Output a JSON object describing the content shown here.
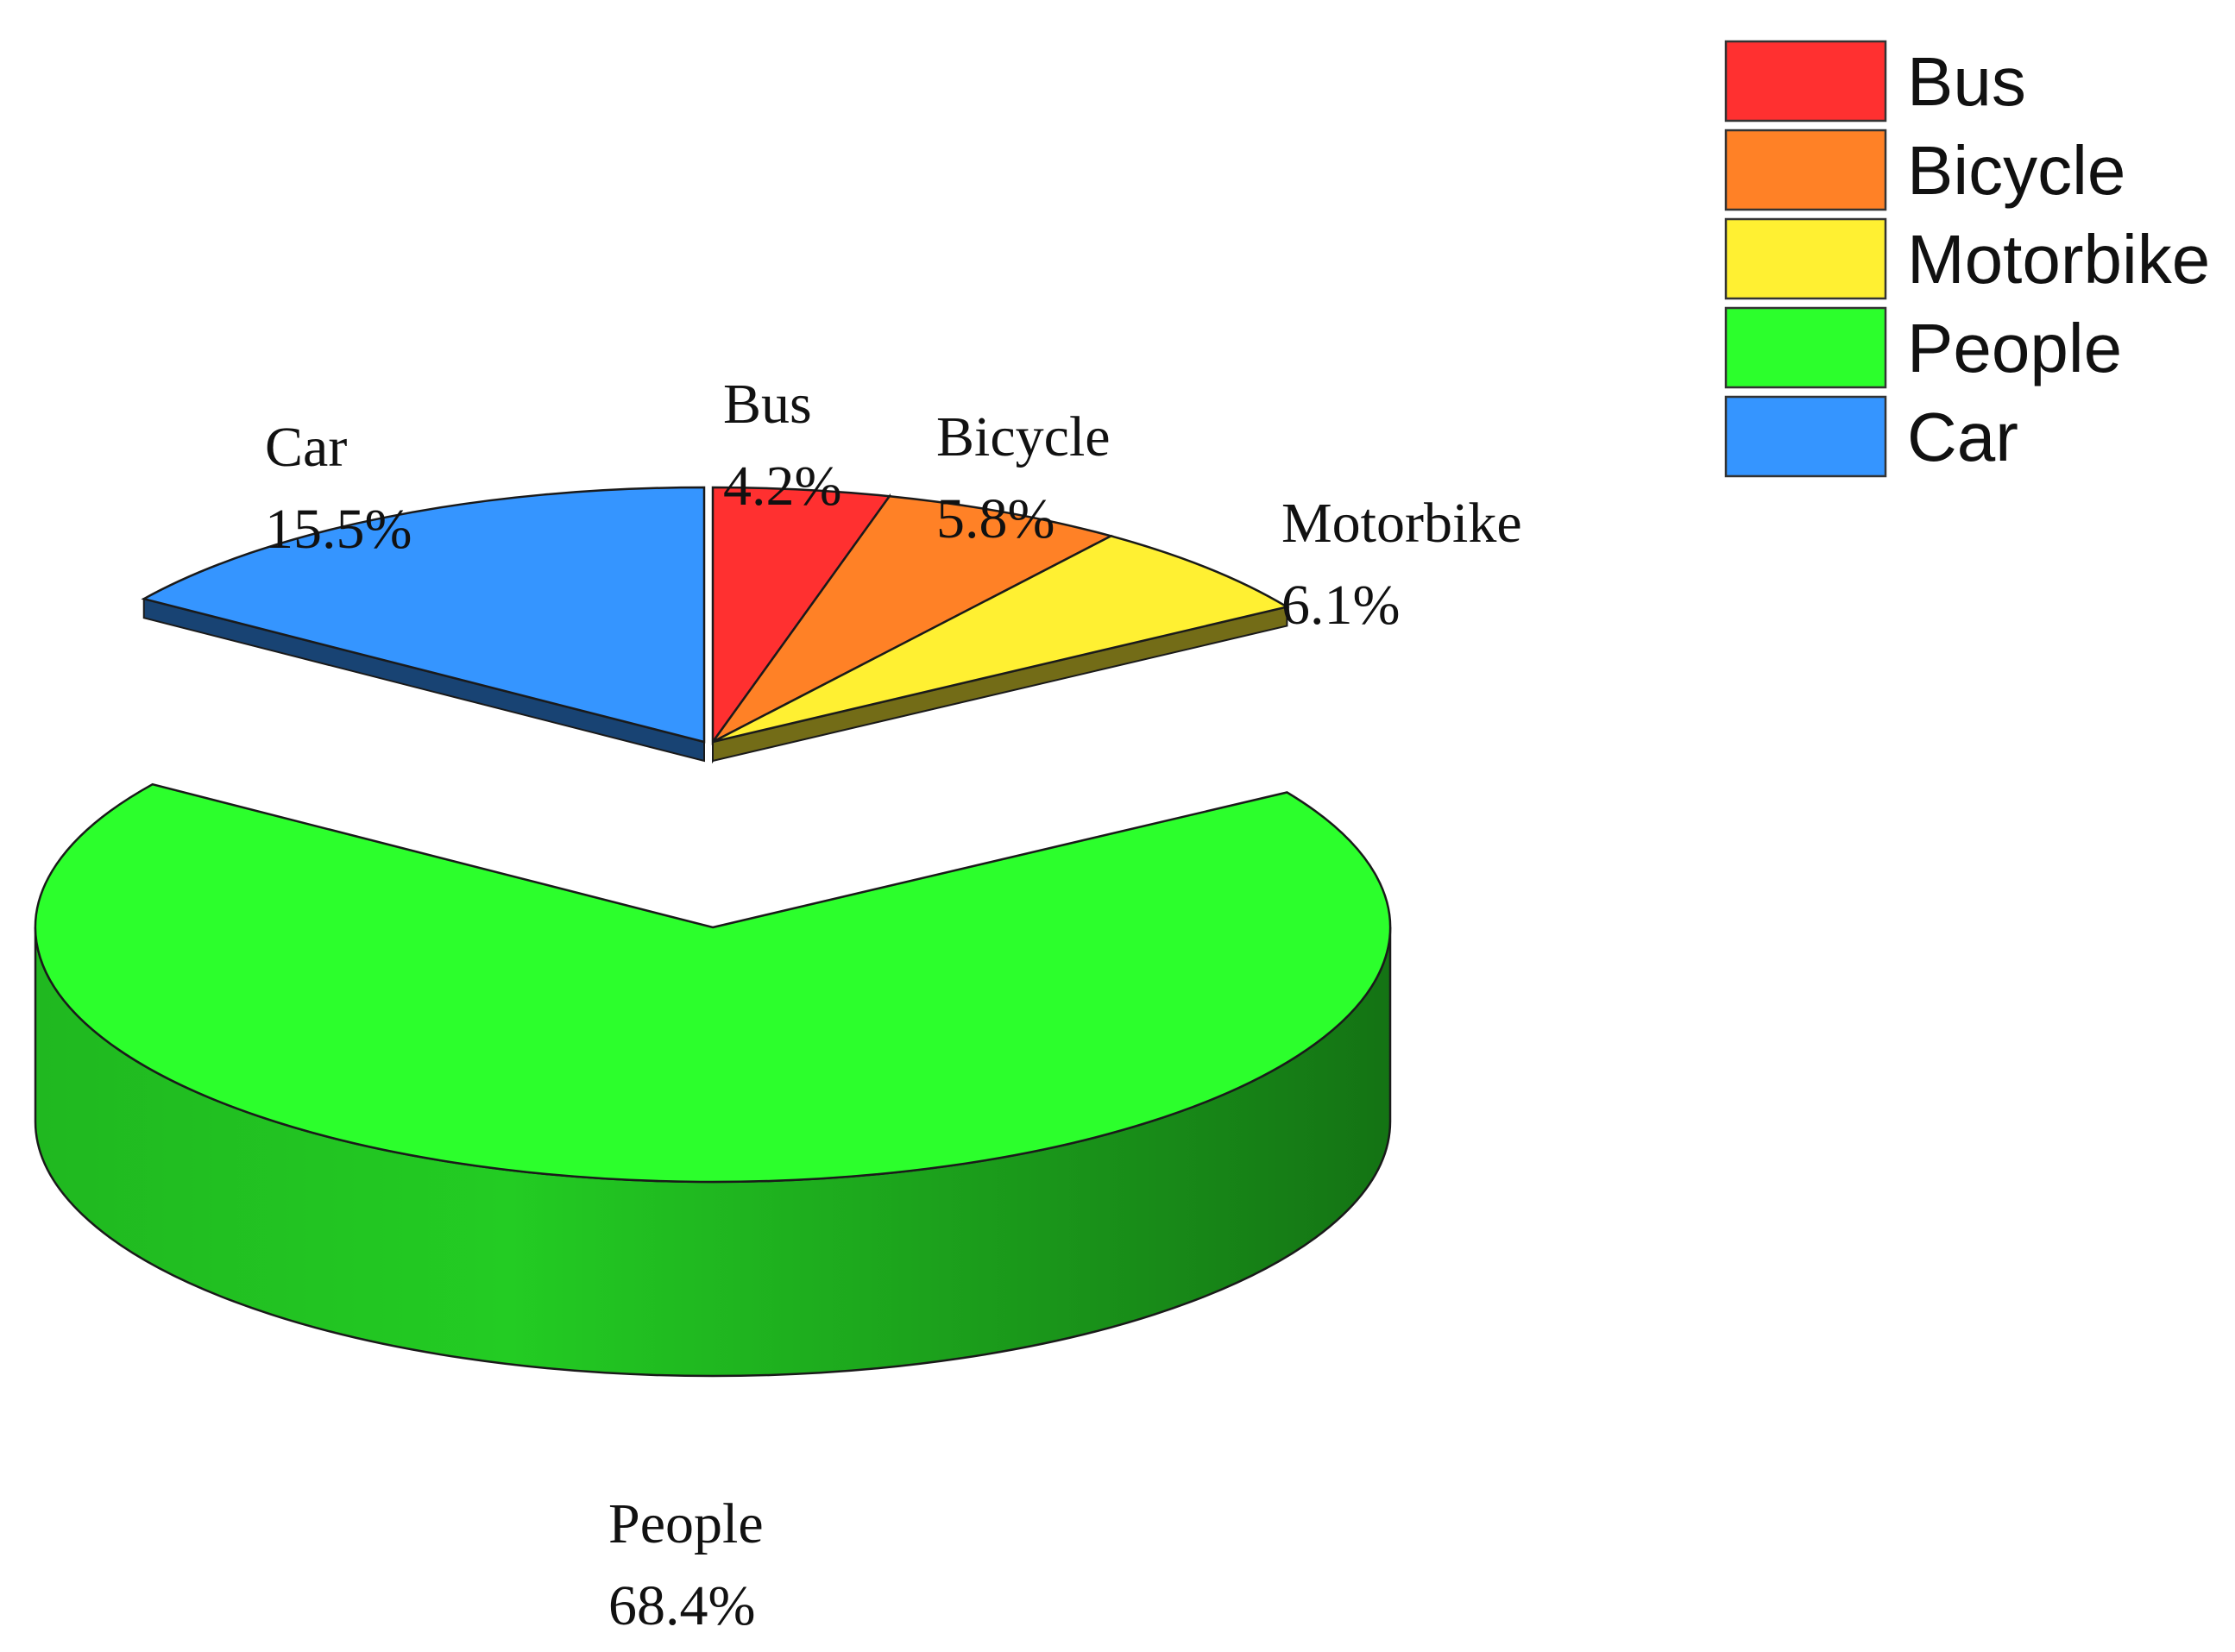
{
  "chart_data": {
    "type": "pie",
    "style": "3d-exploded",
    "legend_position": "top-right",
    "slices": [
      {
        "name": "Bus",
        "value": 4.2,
        "label": "4.2%",
        "color": "#ff3030"
      },
      {
        "name": "Bicycle",
        "value": 5.8,
        "label": "5.8%",
        "color": "#ff8126"
      },
      {
        "name": "Motorbike",
        "value": 6.1,
        "label": "6.1%",
        "color": "#fff032"
      },
      {
        "name": "People",
        "value": 68.4,
        "label": "68.4%",
        "color": "#2cff2c"
      },
      {
        "name": "Car",
        "value": 15.5,
        "label": "15.5%",
        "color": "#3595ff"
      }
    ]
  }
}
